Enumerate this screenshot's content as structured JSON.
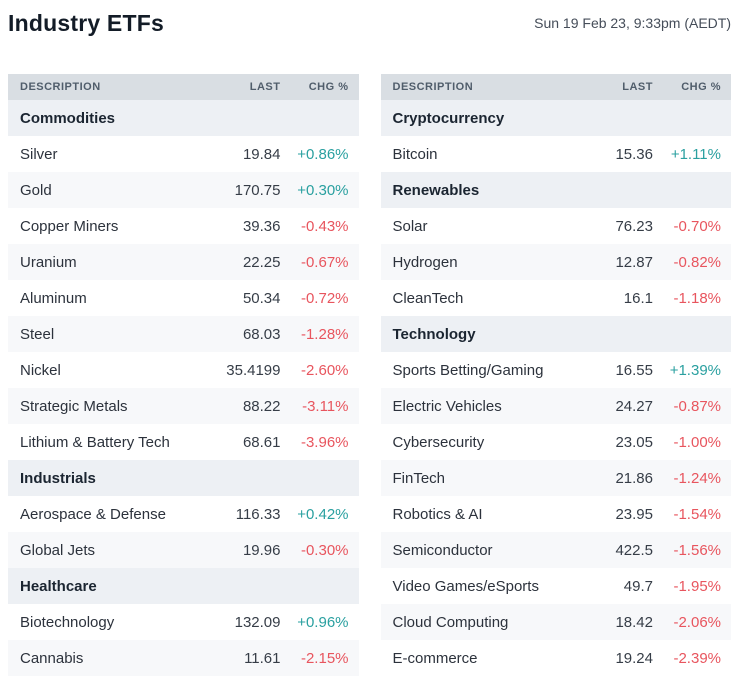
{
  "header": {
    "title": "Industry ETFs",
    "timestamp": "Sun 19 Feb 23, 9:33pm (AEDT)"
  },
  "columns": {
    "description": "DESCRIPTION",
    "last": "LAST",
    "chg": "CHG %"
  },
  "colors": {
    "positive": "#2aa0a0",
    "negative": "#e8555e",
    "header_bg": "#d9dee3",
    "header_fg": "#505d6b",
    "section_bg": "#edf0f4",
    "stripe_bg": "#f7f8fa"
  },
  "tables": [
    {
      "sections": [
        {
          "title": "Commodities",
          "rows": [
            {
              "name": "Silver",
              "last": "19.84",
              "chg": "+0.86%",
              "dir": "up"
            },
            {
              "name": "Gold",
              "last": "170.75",
              "chg": "+0.30%",
              "dir": "up"
            },
            {
              "name": "Copper Miners",
              "last": "39.36",
              "chg": "-0.43%",
              "dir": "down"
            },
            {
              "name": "Uranium",
              "last": "22.25",
              "chg": "-0.67%",
              "dir": "down"
            },
            {
              "name": "Aluminum",
              "last": "50.34",
              "chg": "-0.72%",
              "dir": "down"
            },
            {
              "name": "Steel",
              "last": "68.03",
              "chg": "-1.28%",
              "dir": "down"
            },
            {
              "name": "Nickel",
              "last": "35.4199",
              "chg": "-2.60%",
              "dir": "down"
            },
            {
              "name": "Strategic Metals",
              "last": "88.22",
              "chg": "-3.11%",
              "dir": "down"
            },
            {
              "name": "Lithium & Battery Tech",
              "last": "68.61",
              "chg": "-3.96%",
              "dir": "down"
            }
          ]
        },
        {
          "title": "Industrials",
          "rows": [
            {
              "name": "Aerospace & Defense",
              "last": "116.33",
              "chg": "+0.42%",
              "dir": "up"
            },
            {
              "name": "Global Jets",
              "last": "19.96",
              "chg": "-0.30%",
              "dir": "down"
            }
          ]
        },
        {
          "title": "Healthcare",
          "rows": [
            {
              "name": "Biotechnology",
              "last": "132.09",
              "chg": "+0.96%",
              "dir": "up"
            },
            {
              "name": "Cannabis",
              "last": "11.61",
              "chg": "-2.15%",
              "dir": "down"
            }
          ]
        }
      ]
    },
    {
      "sections": [
        {
          "title": "Cryptocurrency",
          "rows": [
            {
              "name": "Bitcoin",
              "last": "15.36",
              "chg": "+1.11%",
              "dir": "up"
            }
          ]
        },
        {
          "title": "Renewables",
          "rows": [
            {
              "name": "Solar",
              "last": "76.23",
              "chg": "-0.70%",
              "dir": "down"
            },
            {
              "name": "Hydrogen",
              "last": "12.87",
              "chg": "-0.82%",
              "dir": "down"
            },
            {
              "name": "CleanTech",
              "last": "16.1",
              "chg": "-1.18%",
              "dir": "down"
            }
          ]
        },
        {
          "title": "Technology",
          "rows": [
            {
              "name": "Sports Betting/Gaming",
              "last": "16.55",
              "chg": "+1.39%",
              "dir": "up"
            },
            {
              "name": "Electric Vehicles",
              "last": "24.27",
              "chg": "-0.87%",
              "dir": "down"
            },
            {
              "name": "Cybersecurity",
              "last": "23.05",
              "chg": "-1.00%",
              "dir": "down"
            },
            {
              "name": "FinTech",
              "last": "21.86",
              "chg": "-1.24%",
              "dir": "down"
            },
            {
              "name": "Robotics & AI",
              "last": "23.95",
              "chg": "-1.54%",
              "dir": "down"
            },
            {
              "name": "Semiconductor",
              "last": "422.5",
              "chg": "-1.56%",
              "dir": "down"
            },
            {
              "name": "Video Games/eSports",
              "last": "49.7",
              "chg": "-1.95%",
              "dir": "down"
            },
            {
              "name": "Cloud Computing",
              "last": "18.42",
              "chg": "-2.06%",
              "dir": "down"
            },
            {
              "name": "E-commerce",
              "last": "19.24",
              "chg": "-2.39%",
              "dir": "down"
            }
          ]
        }
      ]
    }
  ]
}
